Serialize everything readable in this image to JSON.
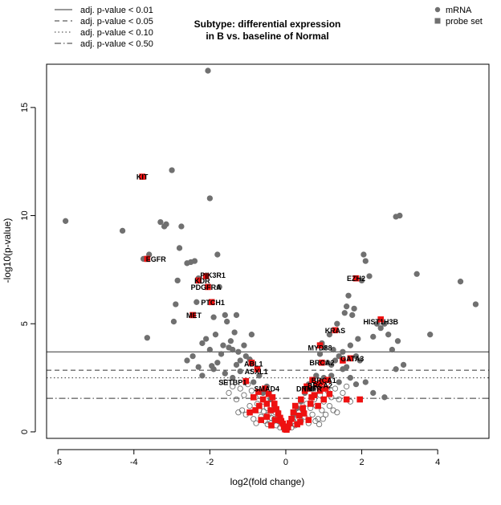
{
  "chart_data": {
    "type": "scatter",
    "title": "Subtype: differential expression",
    "subtitle": "in B vs. baseline of Normal",
    "xlabel": "log2(fold change)",
    "ylabel": "-log10(p-value)",
    "xlim": [
      -6.3,
      5.35
    ],
    "ylim": [
      -0.3,
      17.0
    ],
    "x_ticks": [
      -6,
      -4,
      -2,
      0,
      2,
      4
    ],
    "y_ticks": [
      0,
      5,
      10,
      15
    ],
    "grid": false,
    "legend_position": "top-left and top-right",
    "colors": {
      "mrna": "#707070",
      "probe_set": "#ee1111",
      "line": "#333333",
      "text": "#000000"
    },
    "thresholds": [
      {
        "label": "adj. p-value < 0.01",
        "y": 3.7,
        "style": "solid"
      },
      {
        "label": "adj. p-value < 0.05",
        "y": 2.85,
        "style": "dashed"
      },
      {
        "label": "adj. p-value < 0.10",
        "y": 2.5,
        "style": "dotted"
      },
      {
        "label": "adj. p-value < 0.50",
        "y": 1.55,
        "style": "dashdot"
      }
    ],
    "legend_markers": [
      {
        "label": "mRNA",
        "marker": "circle"
      },
      {
        "label": "probe set",
        "marker": "square"
      }
    ],
    "series": [
      {
        "name": "mRNA",
        "marker": "circle",
        "filled": true,
        "points": [
          [
            -5.8,
            9.75
          ],
          [
            -4.3,
            9.3
          ],
          [
            -3.65,
            4.35
          ],
          [
            -3.75,
            8.0
          ],
          [
            -3.6,
            8.2
          ],
          [
            -3.3,
            9.7
          ],
          [
            -3.2,
            9.5
          ],
          [
            -3.15,
            9.6
          ],
          [
            -3.0,
            12.1
          ],
          [
            -2.9,
            5.9
          ],
          [
            -2.85,
            7.0
          ],
          [
            -2.95,
            5.1
          ],
          [
            -2.8,
            8.5
          ],
          [
            -2.75,
            9.5
          ],
          [
            -2.6,
            7.8
          ],
          [
            -2.5,
            7.85
          ],
          [
            -2.4,
            7.9
          ],
          [
            -2.35,
            6.0
          ],
          [
            -2.3,
            7.1
          ],
          [
            -2.2,
            4.1
          ],
          [
            -2.1,
            4.3
          ],
          [
            -2.05,
            16.7
          ],
          [
            -2.0,
            10.8
          ],
          [
            -2.0,
            3.8
          ],
          [
            -1.9,
            5.3
          ],
          [
            -1.85,
            4.5
          ],
          [
            -1.8,
            8.2
          ],
          [
            -1.75,
            6.7
          ],
          [
            -1.7,
            3.6
          ],
          [
            -1.65,
            4.0
          ],
          [
            -1.6,
            5.4
          ],
          [
            -1.55,
            5.1
          ],
          [
            -1.5,
            3.9
          ],
          [
            -1.45,
            4.2
          ],
          [
            -1.4,
            3.8
          ],
          [
            -1.35,
            4.6
          ],
          [
            -1.3,
            5.4
          ],
          [
            -1.25,
            3.7
          ],
          [
            -1.2,
            3.3
          ],
          [
            -1.1,
            4.0
          ],
          [
            -1.05,
            3.5
          ],
          [
            -2.6,
            3.3
          ],
          [
            -2.3,
            3.0
          ],
          [
            -2.2,
            2.6
          ],
          [
            -1.9,
            2.9
          ],
          [
            -1.8,
            3.2
          ],
          [
            -1.6,
            2.7
          ],
          [
            -1.4,
            2.5
          ],
          [
            -1.2,
            2.8
          ],
          [
            -1.3,
            3.1
          ],
          [
            -0.95,
            3.35
          ],
          [
            -0.85,
            2.3
          ],
          [
            -0.7,
            2.6
          ],
          [
            -0.6,
            1.8
          ],
          [
            -0.5,
            2.1
          ],
          [
            -0.4,
            1.5
          ],
          [
            -0.3,
            1.2
          ],
          [
            -0.2,
            0.9
          ],
          [
            -0.9,
            4.5
          ],
          [
            -2.45,
            3.5
          ],
          [
            -1.95,
            3.05
          ],
          [
            0.8,
            2.6
          ],
          [
            0.9,
            3.6
          ],
          [
            0.95,
            4.1
          ],
          [
            1.0,
            3.9
          ],
          [
            1.05,
            2.4
          ],
          [
            1.1,
            3.2
          ],
          [
            1.15,
            4.5
          ],
          [
            1.2,
            3.1
          ],
          [
            1.25,
            3.8
          ],
          [
            1.3,
            3.3
          ],
          [
            1.35,
            5.0
          ],
          [
            1.4,
            3.5
          ],
          [
            1.5,
            3.7
          ],
          [
            1.55,
            5.5
          ],
          [
            1.6,
            5.8
          ],
          [
            1.65,
            6.3
          ],
          [
            1.7,
            4.0
          ],
          [
            1.75,
            5.4
          ],
          [
            1.8,
            5.7
          ],
          [
            1.85,
            3.5
          ],
          [
            1.9,
            4.3
          ],
          [
            1.95,
            3.3
          ],
          [
            2.0,
            7.0
          ],
          [
            2.05,
            8.2
          ],
          [
            2.1,
            7.9
          ],
          [
            2.2,
            7.2
          ],
          [
            2.3,
            4.4
          ],
          [
            2.4,
            5.0
          ],
          [
            2.5,
            4.8
          ],
          [
            2.6,
            5.0
          ],
          [
            2.7,
            4.5
          ],
          [
            2.8,
            3.8
          ],
          [
            2.9,
            9.95
          ],
          [
            2.95,
            4.2
          ],
          [
            3.0,
            10.0
          ],
          [
            3.1,
            3.1
          ],
          [
            3.45,
            7.3
          ],
          [
            3.8,
            4.5
          ],
          [
            4.6,
            6.95
          ],
          [
            5.0,
            5.9
          ],
          [
            0.6,
            2.2
          ],
          [
            0.5,
            1.8
          ],
          [
            0.4,
            1.4
          ],
          [
            0.3,
            1.1
          ],
          [
            0.2,
            0.8
          ],
          [
            1.2,
            2.6
          ],
          [
            1.5,
            2.9
          ],
          [
            1.7,
            2.5
          ],
          [
            1.85,
            2.2
          ],
          [
            2.1,
            2.3
          ],
          [
            2.3,
            1.8
          ],
          [
            2.6,
            1.6
          ],
          [
            2.9,
            2.9
          ],
          [
            0.7,
            2.0
          ],
          [
            1.0,
            2.5
          ],
          [
            1.4,
            2.3
          ],
          [
            1.6,
            3.0
          ]
        ]
      },
      {
        "name": "mRNA",
        "marker": "circle",
        "filled": false,
        "points": [
          [
            -1.2,
            2.0
          ],
          [
            -1.1,
            1.7
          ],
          [
            -1.0,
            2.2
          ],
          [
            -0.9,
            1.9
          ],
          [
            -0.8,
            1.6
          ],
          [
            -0.75,
            1.3
          ],
          [
            -0.7,
            1.0
          ],
          [
            -0.65,
            0.7
          ],
          [
            -0.6,
            1.4
          ],
          [
            -0.55,
            0.5
          ],
          [
            -0.5,
            1.1
          ],
          [
            -0.45,
            0.8
          ],
          [
            -0.4,
            0.4
          ],
          [
            -0.35,
            1.0
          ],
          [
            -0.3,
            0.6
          ],
          [
            -0.25,
            0.3
          ],
          [
            -0.2,
            0.5
          ],
          [
            -0.15,
            0.2
          ],
          [
            -0.1,
            0.4
          ],
          [
            -0.05,
            0.15
          ],
          [
            -1.3,
            1.5
          ],
          [
            -1.15,
            1.0
          ],
          [
            -1.05,
            0.8
          ],
          [
            -0.95,
            1.2
          ],
          [
            -0.85,
            0.6
          ],
          [
            -0.78,
            0.4
          ],
          [
            -1.4,
            2.1
          ],
          [
            -1.5,
            1.8
          ],
          [
            -1.6,
            2.3
          ],
          [
            -1.25,
            0.9
          ],
          [
            -0.68,
            1.85
          ],
          [
            -0.58,
            0.95
          ],
          [
            -0.48,
            0.35
          ],
          [
            -0.38,
            0.65
          ],
          [
            -0.28,
            0.9
          ],
          [
            -0.18,
            0.7
          ],
          [
            0.05,
            0.15
          ],
          [
            0.1,
            0.35
          ],
          [
            0.15,
            0.2
          ],
          [
            0.2,
            0.5
          ],
          [
            0.25,
            0.3
          ],
          [
            0.3,
            0.6
          ],
          [
            0.35,
            0.9
          ],
          [
            0.4,
            0.5
          ],
          [
            0.45,
            1.0
          ],
          [
            0.5,
            0.7
          ],
          [
            0.55,
            1.3
          ],
          [
            0.6,
            0.4
          ],
          [
            0.65,
            1.1
          ],
          [
            0.7,
            0.8
          ],
          [
            0.75,
            1.5
          ],
          [
            0.8,
            1.2
          ],
          [
            0.85,
            0.6
          ],
          [
            0.9,
            1.7
          ],
          [
            0.95,
            1.0
          ],
          [
            1.0,
            1.4
          ],
          [
            1.05,
            0.8
          ],
          [
            1.1,
            1.9
          ],
          [
            1.15,
            1.2
          ],
          [
            1.2,
            1.6
          ],
          [
            1.25,
            1.0
          ],
          [
            1.3,
            2.0
          ],
          [
            1.4,
            1.5
          ],
          [
            1.5,
            1.8
          ],
          [
            1.6,
            2.1
          ],
          [
            1.7,
            1.4
          ],
          [
            0.78,
            0.5
          ],
          [
            0.88,
            0.35
          ],
          [
            0.98,
            0.6
          ],
          [
            1.35,
            0.9
          ]
        ]
      },
      {
        "name": "probe set",
        "marker": "square",
        "points": [
          [
            -3.78,
            11.8
          ],
          [
            -3.65,
            8.0
          ],
          [
            -2.3,
            7.0
          ],
          [
            -2.1,
            7.2
          ],
          [
            -2.05,
            6.7
          ],
          [
            -1.95,
            6.0
          ],
          [
            -2.45,
            5.4
          ],
          [
            -0.9,
            3.2
          ],
          [
            -0.75,
            2.9
          ],
          [
            -1.05,
            2.35
          ],
          [
            -0.55,
            2.0
          ],
          [
            -0.45,
            1.75
          ],
          [
            -0.35,
            1.6
          ],
          [
            -0.3,
            1.3
          ],
          [
            -0.25,
            1.05
          ],
          [
            -0.2,
            0.85
          ],
          [
            -0.15,
            0.65
          ],
          [
            -0.12,
            0.5
          ],
          [
            -0.08,
            0.38
          ],
          [
            -0.05,
            0.25
          ],
          [
            -0.02,
            0.12
          ],
          [
            -0.6,
            1.5
          ],
          [
            -0.7,
            1.2
          ],
          [
            -0.8,
            1.0
          ],
          [
            -0.95,
            0.9
          ],
          [
            -0.4,
            1.0
          ],
          [
            -0.5,
            0.7
          ],
          [
            -0.28,
            0.55
          ],
          [
            -0.65,
            0.55
          ],
          [
            -0.85,
            1.6
          ],
          [
            -0.72,
            1.85
          ],
          [
            -0.5,
            1.3
          ],
          [
            -0.38,
            0.3
          ],
          [
            0.02,
            0.1
          ],
          [
            0.06,
            0.22
          ],
          [
            0.1,
            0.4
          ],
          [
            0.15,
            0.6
          ],
          [
            0.2,
            0.9
          ],
          [
            0.25,
            1.2
          ],
          [
            0.3,
            0.35
          ],
          [
            0.35,
            0.75
          ],
          [
            0.4,
            1.5
          ],
          [
            0.45,
            1.1
          ],
          [
            0.5,
            1.9
          ],
          [
            0.55,
            2.1
          ],
          [
            0.6,
            0.55
          ],
          [
            0.65,
            1.3
          ],
          [
            0.7,
            2.4
          ],
          [
            0.75,
            1.7
          ],
          [
            0.8,
            2.2
          ],
          [
            0.85,
            1.2
          ],
          [
            0.9,
            1.9
          ],
          [
            0.95,
            2.3
          ],
          [
            1.0,
            1.5
          ],
          [
            1.05,
            2.0
          ],
          [
            1.1,
            2.4
          ],
          [
            1.15,
            1.75
          ],
          [
            0.58,
            2.0
          ],
          [
            0.68,
            1.6
          ],
          [
            0.88,
            2.2
          ],
          [
            0.48,
            0.85
          ],
          [
            0.38,
            0.45
          ],
          [
            0.95,
            3.2
          ],
          [
            1.3,
            4.7
          ],
          [
            1.7,
            3.4
          ],
          [
            1.5,
            3.3
          ],
          [
            1.85,
            7.1
          ],
          [
            2.5,
            5.2
          ],
          [
            0.9,
            4.0
          ],
          [
            1.6,
            1.5
          ],
          [
            1.95,
            1.5
          ]
        ]
      }
    ],
    "labels": [
      {
        "text": "KIT",
        "x": -3.78,
        "y": 11.8
      },
      {
        "text": "EGFR",
        "x": -3.42,
        "y": 8.0
      },
      {
        "text": "PIK3R1",
        "x": -1.92,
        "y": 7.25
      },
      {
        "text": "KDR",
        "x": -2.2,
        "y": 7.0
      },
      {
        "text": "PDGFRA",
        "x": -2.1,
        "y": 6.7
      },
      {
        "text": "PTCH1",
        "x": -1.92,
        "y": 6.0
      },
      {
        "text": "MET",
        "x": -2.42,
        "y": 5.4
      },
      {
        "text": "ABL1",
        "x": -0.85,
        "y": 3.15
      },
      {
        "text": "ASXL1",
        "x": -0.78,
        "y": 2.8
      },
      {
        "text": "SETBP1",
        "x": -1.4,
        "y": 2.3
      },
      {
        "text": "SMAD4",
        "x": -0.5,
        "y": 2.0
      },
      {
        "text": "KRAS",
        "x": 1.3,
        "y": 4.7
      },
      {
        "text": "MYD88",
        "x": 0.9,
        "y": 3.9
      },
      {
        "text": "BRCA2",
        "x": 0.95,
        "y": 3.2
      },
      {
        "text": "GATA3",
        "x": 1.75,
        "y": 3.4
      },
      {
        "text": "BRCA1",
        "x": 1.0,
        "y": 2.4
      },
      {
        "text": "BRCA2",
        "x": 0.9,
        "y": 2.15
      },
      {
        "text": "TNFR",
        "x": 0.7,
        "y": 2.0
      },
      {
        "text": "DNMT",
        "x": 0.55,
        "y": 2.0
      },
      {
        "text": "EZH2",
        "x": 1.85,
        "y": 7.1
      },
      {
        "text": "HIST1H3B",
        "x": 2.5,
        "y": 5.1
      }
    ]
  }
}
